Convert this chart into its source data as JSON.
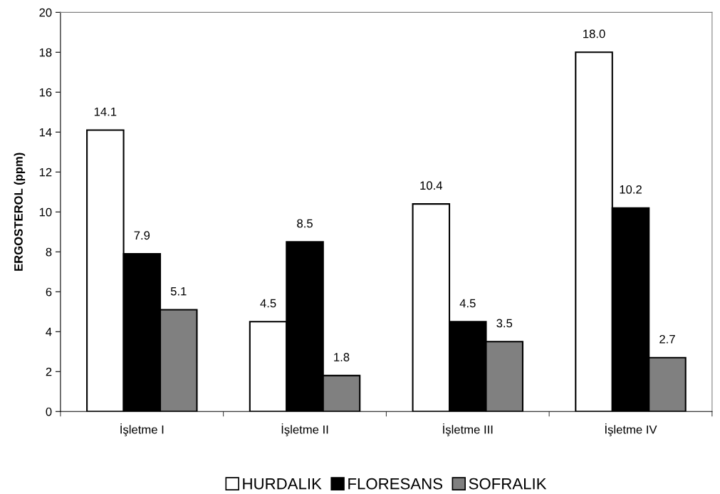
{
  "chart_data": {
    "type": "bar",
    "ylabel": "ERGOSTEROL (ppm)",
    "categories": [
      "İşletme I",
      "İşletme II",
      "İşletme III",
      "İşletme IV"
    ],
    "series": [
      {
        "name": "HURDALIK",
        "color": "#ffffff",
        "values": [
          14.1,
          4.5,
          10.4,
          18.0
        ],
        "value_labels": [
          "14.1",
          "4.5",
          "10.4",
          "18.0"
        ]
      },
      {
        "name": "FLORESANS",
        "color": "#000000",
        "values": [
          7.9,
          8.5,
          4.5,
          10.2
        ],
        "value_labels": [
          "7.9",
          "8.5",
          "4.5",
          "10.2"
        ]
      },
      {
        "name": "SOFRALIK",
        "color": "#808080",
        "values": [
          5.1,
          1.8,
          3.5,
          2.7
        ],
        "value_labels": [
          "5.1",
          "1.8",
          "3.5",
          "2.7"
        ]
      }
    ],
    "ylim": [
      0,
      20
    ],
    "yticks": [
      0,
      2,
      4,
      6,
      8,
      10,
      12,
      14,
      16,
      18,
      20
    ],
    "legend": "bottom",
    "grid": false
  }
}
